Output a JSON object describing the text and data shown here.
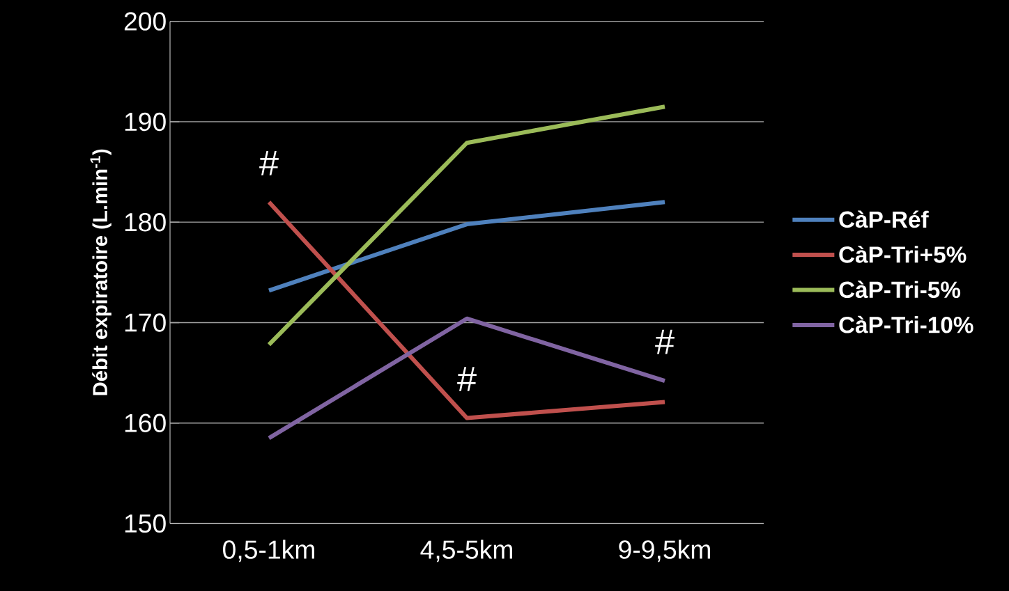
{
  "chart_data": {
    "type": "line",
    "ylabel": "Débit expiratoire (L.min$^{-1}$)",
    "categories": [
      "0,5-1km",
      "4,5-5km",
      "9-9,5km"
    ],
    "series": [
      {
        "name": "CàP-Réf",
        "color": "#4f81bd",
        "values": [
          173.2,
          179.8,
          182.0
        ]
      },
      {
        "name": "CàP-Tri+5%",
        "color": "#c0504d",
        "values": [
          182.0,
          160.5,
          162.1
        ]
      },
      {
        "name": "CàP-Tri-5%",
        "color": "#9bbb59",
        "values": [
          167.8,
          187.9,
          191.5
        ]
      },
      {
        "name": "CàP-Tri-10%",
        "color": "#8064a2",
        "values": [
          158.5,
          170.4,
          164.2
        ]
      }
    ],
    "ylim": [
      150,
      200
    ],
    "yticks": [
      150,
      160,
      170,
      180,
      190,
      200
    ],
    "grid": "y",
    "legend": "right",
    "marker": "none",
    "line_style": "solid",
    "annotations": [
      {
        "text": "#",
        "x": "0,5-1km",
        "y": 182.0
      },
      {
        "text": "#",
        "x": "4,5-5km",
        "y": 160.5
      },
      {
        "text": "#",
        "x": "9-9,5km",
        "y": 164.2
      }
    ]
  }
}
